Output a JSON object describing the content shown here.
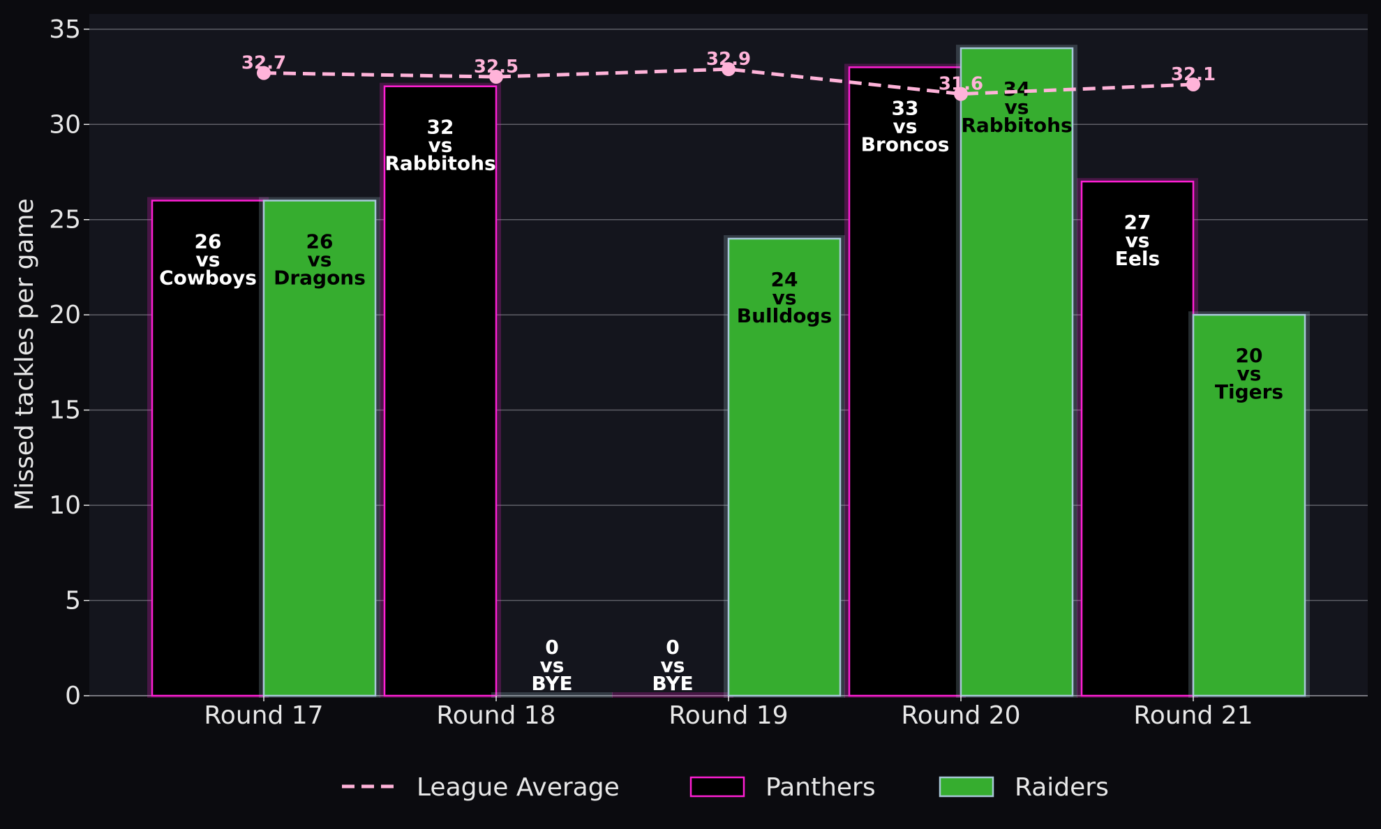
{
  "chart_data": {
    "type": "bar",
    "title": "",
    "xlabel": "",
    "ylabel": "Missed tackles per game",
    "ylim": [
      0,
      35.8
    ],
    "yticks": [
      0,
      5,
      10,
      15,
      20,
      25,
      30,
      35
    ],
    "grid": "horizontal",
    "legend_position": "bottom-center",
    "categories": [
      "Round 17",
      "Round 18",
      "Round 19",
      "Round 20",
      "Round 21"
    ],
    "series": [
      {
        "name": "Panthers",
        "kind": "bar",
        "fill": "#000000",
        "edge": "#ff1fd4",
        "label_color": "#ffffff",
        "values": [
          26,
          32,
          0,
          33,
          27
        ],
        "labels": [
          [
            "26",
            "vs",
            "Cowboys"
          ],
          [
            "32",
            "vs",
            "Rabbitohs"
          ],
          [
            "0",
            "vs",
            "BYE"
          ],
          [
            "33",
            "vs",
            "Broncos"
          ],
          [
            "27",
            "vs",
            "Eels"
          ]
        ]
      },
      {
        "name": "Raiders",
        "kind": "bar",
        "fill": "#36ad2f",
        "edge": "#a8c8d8",
        "label_color": "#000000",
        "values": [
          26,
          0,
          24,
          34,
          20
        ],
        "labels": [
          [
            "26",
            "vs",
            "Dragons"
          ],
          [
            "0",
            "vs",
            "BYE"
          ],
          [
            "24",
            "vs",
            "Bulldogs"
          ],
          [
            "34",
            "vs",
            "Rabbitohs"
          ],
          [
            "20",
            "vs",
            "Tigers"
          ]
        ]
      },
      {
        "name": "League Average",
        "kind": "line",
        "style": "dashed",
        "color": "#ffb3d9",
        "values": [
          32.7,
          32.5,
          32.9,
          31.6,
          32.1
        ],
        "labels": [
          "32.7",
          "32.5",
          "32.9",
          "31.6",
          "32.1"
        ]
      }
    ],
    "legend": [
      "League Average",
      "Panthers",
      "Raiders"
    ]
  },
  "colors": {
    "page_background": "#0b0b0f",
    "plot_background": "#14151d",
    "gridline": "#5f6068",
    "text": "#e8e8e8"
  }
}
